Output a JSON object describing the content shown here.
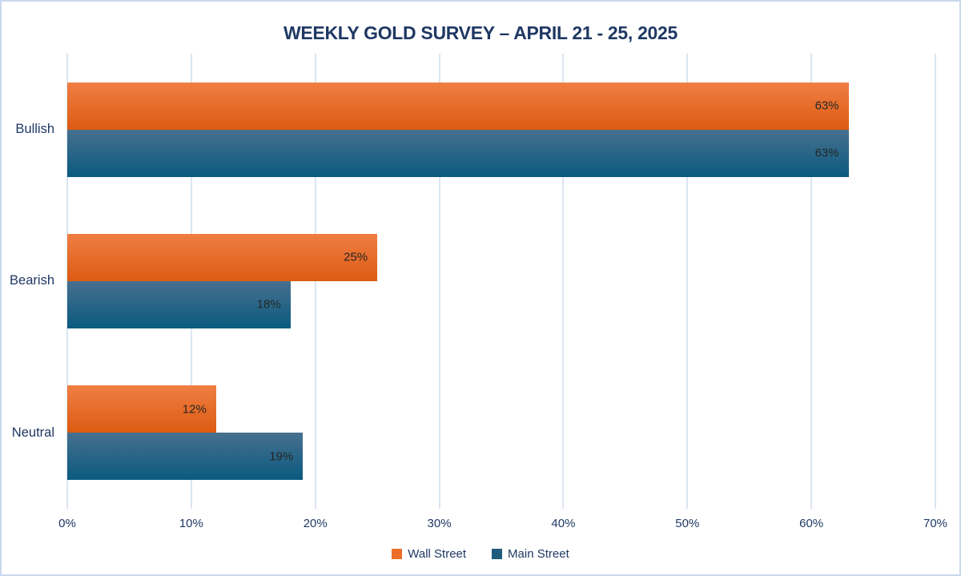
{
  "chart_data": {
    "type": "bar",
    "orientation": "horizontal",
    "title": "WEEKLY GOLD SURVEY – APRIL 21 - 25, 2025",
    "categories": [
      "Bullish",
      "Bearish",
      "Neutral"
    ],
    "series": [
      {
        "name": "Wall Street",
        "values": [
          63,
          25,
          12
        ],
        "color_top": "#F07E43",
        "color_bottom": "#DD5B12",
        "legend_color": "#EC6E2A"
      },
      {
        "name": "Main Street",
        "values": [
          63,
          18,
          19
        ],
        "color_top": "#47708E",
        "color_bottom": "#0A5A80",
        "legend_color": "#1E5C7E"
      }
    ],
    "value_suffix": "%",
    "data_labels": [
      "63%",
      "63%",
      "25%",
      "18%",
      "12%",
      "19%"
    ],
    "xlim": [
      0,
      70
    ],
    "x_ticks": [
      "0%",
      "10%",
      "20%",
      "30%",
      "40%",
      "50%",
      "60%",
      "70%"
    ],
    "grid": true,
    "legend_position": "bottom"
  },
  "colors": {
    "title_text": "#1F3864",
    "axis_text": "#1F3864",
    "data_label_text": "#262626",
    "gridline": "#DBE5F2",
    "canvas_border": "#C9D9EF",
    "background": "#FFFFFF"
  }
}
